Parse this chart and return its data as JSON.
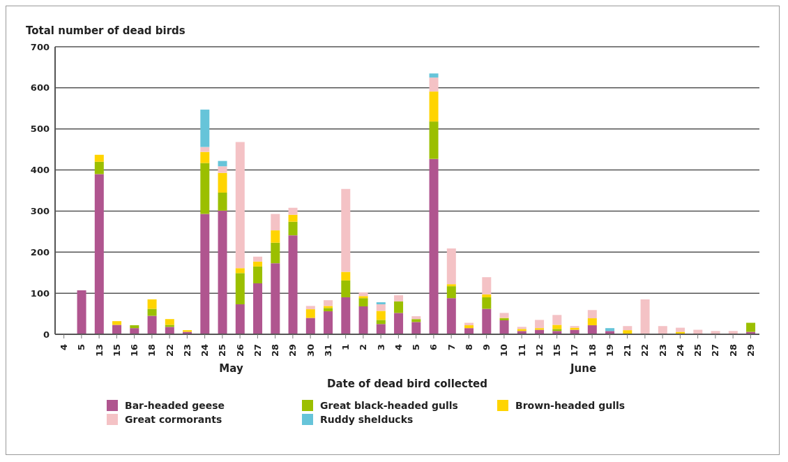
{
  "chart_data": {
    "type": "bar",
    "stacked": true,
    "ylabel": "Total number of dead birds",
    "xlabel": "Date of dead bird collected",
    "categories": [
      "4",
      "5",
      "13",
      "15",
      "16",
      "18",
      "22",
      "23",
      "24",
      "25",
      "26",
      "27",
      "28",
      "29",
      "30",
      "31",
      "1",
      "2",
      "3",
      "4",
      "5",
      "6",
      "7",
      "8",
      "9",
      "10",
      "11",
      "12",
      "15",
      "17",
      "18",
      "19",
      "21",
      "22",
      "23",
      "24",
      "25",
      "27",
      "28",
      "29"
    ],
    "series": [
      {
        "name": "Bar-headed geese",
        "color": "#b0558f",
        "values": [
          0,
          107,
          390,
          23,
          15,
          45,
          18,
          6,
          293,
          301,
          73,
          124,
          173,
          241,
          40,
          56,
          90,
          68,
          25,
          52,
          30,
          427,
          88,
          15,
          62,
          34,
          8,
          11,
          8,
          11,
          22,
          8,
          0,
          0,
          0,
          0,
          0,
          0,
          0,
          6
        ]
      },
      {
        "name": "Great black-headed gulls",
        "color": "#9bbf00",
        "values": [
          0,
          0,
          30,
          0,
          7,
          17,
          5,
          0,
          124,
          44,
          76,
          41,
          50,
          33,
          0,
          8,
          41,
          20,
          10,
          28,
          7,
          91,
          29,
          0,
          28,
          5,
          0,
          0,
          5,
          0,
          0,
          0,
          0,
          0,
          0,
          0,
          0,
          0,
          0,
          22
        ]
      },
      {
        "name": "Brown-headed gulls",
        "color": "#ffd400",
        "values": [
          0,
          0,
          17,
          9,
          0,
          23,
          14,
          4,
          27,
          48,
          12,
          12,
          30,
          17,
          21,
          5,
          21,
          5,
          22,
          0,
          0,
          73,
          5,
          7,
          7,
          1,
          5,
          4,
          10,
          5,
          17,
          0,
          10,
          0,
          0,
          6,
          0,
          0,
          0,
          0
        ]
      },
      {
        "name": "Great cormorants",
        "color": "#f4c2c5",
        "values": [
          0,
          0,
          0,
          0,
          0,
          0,
          0,
          0,
          12,
          16,
          307,
          12,
          40,
          17,
          8,
          14,
          202,
          9,
          16,
          15,
          7,
          34,
          87,
          6,
          42,
          12,
          5,
          20,
          24,
          4,
          20,
          0,
          10,
          85,
          20,
          10,
          11,
          8,
          8,
          0
        ]
      },
      {
        "name": "Ruddy shelducks",
        "color": "#66c4d9",
        "values": [
          0,
          0,
          0,
          0,
          0,
          0,
          0,
          0,
          91,
          13,
          0,
          0,
          0,
          0,
          0,
          0,
          0,
          0,
          5,
          0,
          0,
          10,
          0,
          0,
          0,
          0,
          0,
          0,
          0,
          0,
          0,
          7,
          0,
          0,
          0,
          0,
          0,
          0,
          0,
          0
        ]
      }
    ],
    "ylim": [
      0,
      700
    ],
    "yticks": [
      0,
      100,
      200,
      300,
      400,
      500,
      600,
      700
    ],
    "grid": "y",
    "legend": "bottom",
    "annotations": [
      "May",
      "June"
    ]
  }
}
